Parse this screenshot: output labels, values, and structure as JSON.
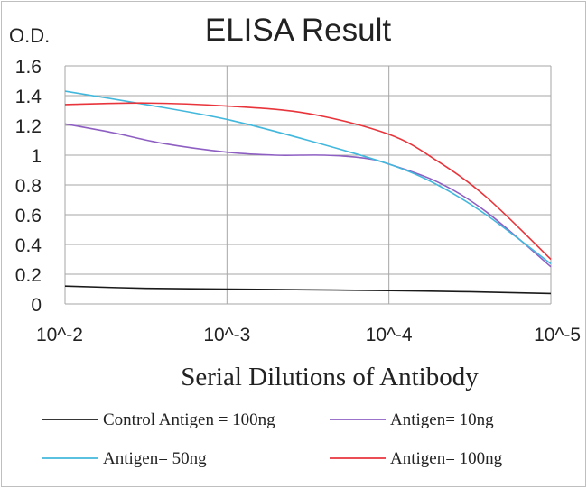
{
  "chart_data": {
    "type": "line",
    "title": "ELISA Result",
    "ylabel": "O.D.",
    "xlabel": "Serial  Dilutions  of Antibody",
    "ylim": [
      0,
      1.6
    ],
    "yticks": [
      0,
      0.2,
      0.4,
      0.6,
      0.8,
      1,
      1.2,
      1.4,
      1.6
    ],
    "ytick_labels": [
      "0",
      "0.2",
      "0.4",
      "0.6",
      "0.8",
      "1",
      "1.2",
      "1.4",
      "1.6"
    ],
    "x": [
      -2,
      -3,
      -4,
      -5
    ],
    "xtick_labels": [
      "10^-2",
      "10^-3",
      "10^-4",
      "10^-5"
    ],
    "grid": true,
    "legend_position": "bottom",
    "series": [
      {
        "name": "Control Antigen = 100ng",
        "color": "#1a1a1a",
        "points": [
          [
            -2,
            0.12
          ],
          [
            -2.5,
            0.105
          ],
          [
            -3,
            0.1
          ],
          [
            -3.5,
            0.095
          ],
          [
            -4,
            0.09
          ],
          [
            -4.5,
            0.082
          ],
          [
            -5,
            0.07
          ]
        ]
      },
      {
        "name": "Antigen= 10ng",
        "color": "#8e5fc2",
        "points": [
          [
            -2,
            1.21
          ],
          [
            -2.3,
            1.15
          ],
          [
            -2.6,
            1.08
          ],
          [
            -3,
            1.02
          ],
          [
            -3.3,
            1.0
          ],
          [
            -3.6,
            1.0
          ],
          [
            -3.85,
            0.98
          ],
          [
            -4,
            0.94
          ],
          [
            -4.3,
            0.82
          ],
          [
            -4.6,
            0.62
          ],
          [
            -5,
            0.25
          ]
        ]
      },
      {
        "name": "Antigen= 50ng",
        "color": "#43b8dd",
        "points": [
          [
            -2,
            1.43
          ],
          [
            -2.5,
            1.34
          ],
          [
            -3,
            1.24
          ],
          [
            -3.5,
            1.1
          ],
          [
            -4,
            0.94
          ],
          [
            -4.3,
            0.8
          ],
          [
            -4.6,
            0.6
          ],
          [
            -5,
            0.27
          ]
        ]
      },
      {
        "name": "Antigen= 100ng",
        "color": "#e8343b",
        "points": [
          [
            -2,
            1.34
          ],
          [
            -2.5,
            1.35
          ],
          [
            -3,
            1.33
          ],
          [
            -3.5,
            1.28
          ],
          [
            -4,
            1.14
          ],
          [
            -4.3,
            0.96
          ],
          [
            -4.6,
            0.72
          ],
          [
            -5,
            0.3
          ]
        ]
      }
    ]
  }
}
